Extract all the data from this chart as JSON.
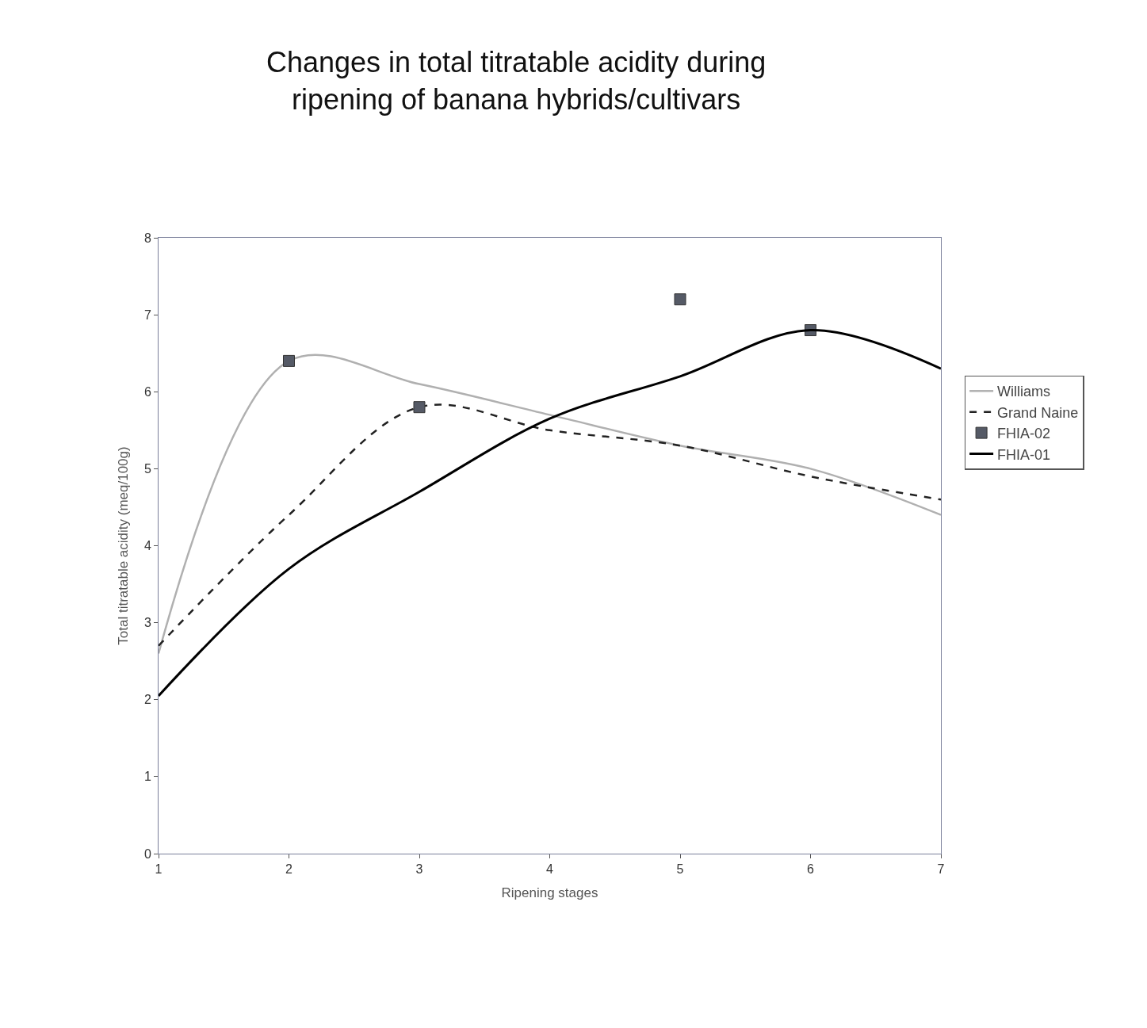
{
  "chart_data": {
    "type": "line",
    "title": "Changes in total titratable acidity during\nripening of banana hybrids/cultivars",
    "xlabel": "Ripening stages",
    "ylabel": "Total titratable acidity (meq/100g)",
    "x": [
      1,
      2,
      3,
      4,
      5,
      6,
      7
    ],
    "series": [
      {
        "name": "Williams",
        "color": "#b0b0b0",
        "values": [
          2.6,
          6.4,
          6.1,
          5.7,
          5.3,
          5.0,
          4.4
        ],
        "line_style": "solid",
        "marker": "none"
      },
      {
        "name": "Grand Naine",
        "color": "#222222",
        "values": [
          2.7,
          4.4,
          5.8,
          5.5,
          5.3,
          4.9,
          4.6
        ],
        "line_style": "dashed",
        "marker": "none"
      },
      {
        "name": "FHIA-02",
        "type": "scatter",
        "color": "#555a66",
        "x": [
          2,
          3,
          5,
          6
        ],
        "values": [
          6.4,
          5.8,
          7.2,
          6.8
        ],
        "marker": "square"
      },
      {
        "name": "FHIA-01",
        "color": "#000000",
        "values": [
          2.05,
          3.7,
          4.7,
          5.65,
          6.2,
          6.8,
          6.3
        ],
        "line_style": "solid",
        "marker": "none"
      }
    ],
    "xlim": [
      1,
      7
    ],
    "xticks": [
      1,
      2,
      3,
      4,
      5,
      6,
      7
    ],
    "ylim": [
      0,
      8
    ],
    "yticks": [
      0,
      1,
      2,
      3,
      4,
      5,
      6,
      7,
      8
    ],
    "legend": "right"
  }
}
